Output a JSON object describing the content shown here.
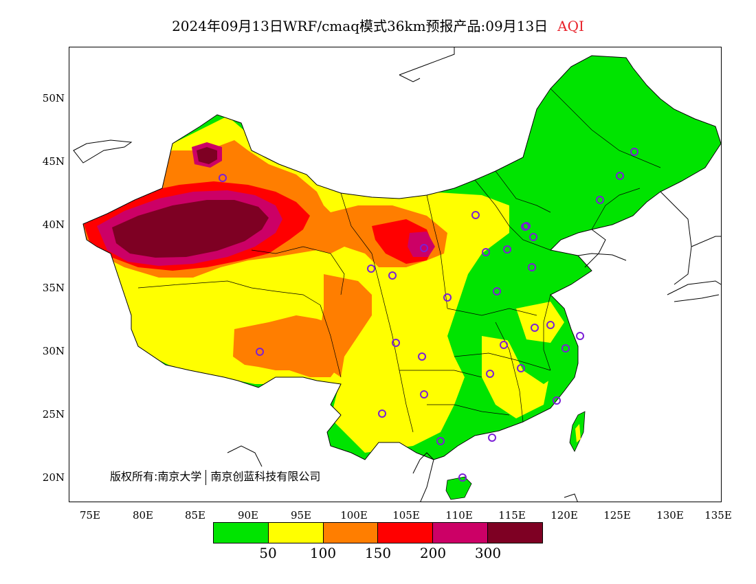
{
  "title": {
    "main": "2024年09月13日WRF/cmaq模式36km预报产品:09月13日",
    "variable": "AQI",
    "variable_color": "#e8222a"
  },
  "map": {
    "lon_range": [
      73,
      135
    ],
    "lat_range": [
      18,
      54
    ],
    "lat_labels": [
      "50N",
      "45N",
      "40N",
      "35N",
      "30N",
      "25N",
      "20N"
    ],
    "lon_labels": [
      "75E",
      "80E",
      "85E",
      "90E",
      "95E",
      "100E",
      "105E",
      "110E",
      "115E",
      "120E",
      "125E",
      "130E",
      "135E"
    ],
    "copyright": {
      "part1": "版权所有:南京大学",
      "part2": "南京创蓝科技有限公司"
    },
    "station_marker": "circle",
    "station_color": "#7b1fd6"
  },
  "legend": {
    "colors": [
      "#00e400",
      "#ffff00",
      "#ff7e00",
      "#ff0000",
      "#cc0066",
      "#7e0023"
    ],
    "labels": [
      "50",
      "100",
      "150",
      "200",
      "300"
    ],
    "categories": [
      "0-50",
      "50-100",
      "100-150",
      "150-200",
      "200-300",
      ">300"
    ]
  }
}
